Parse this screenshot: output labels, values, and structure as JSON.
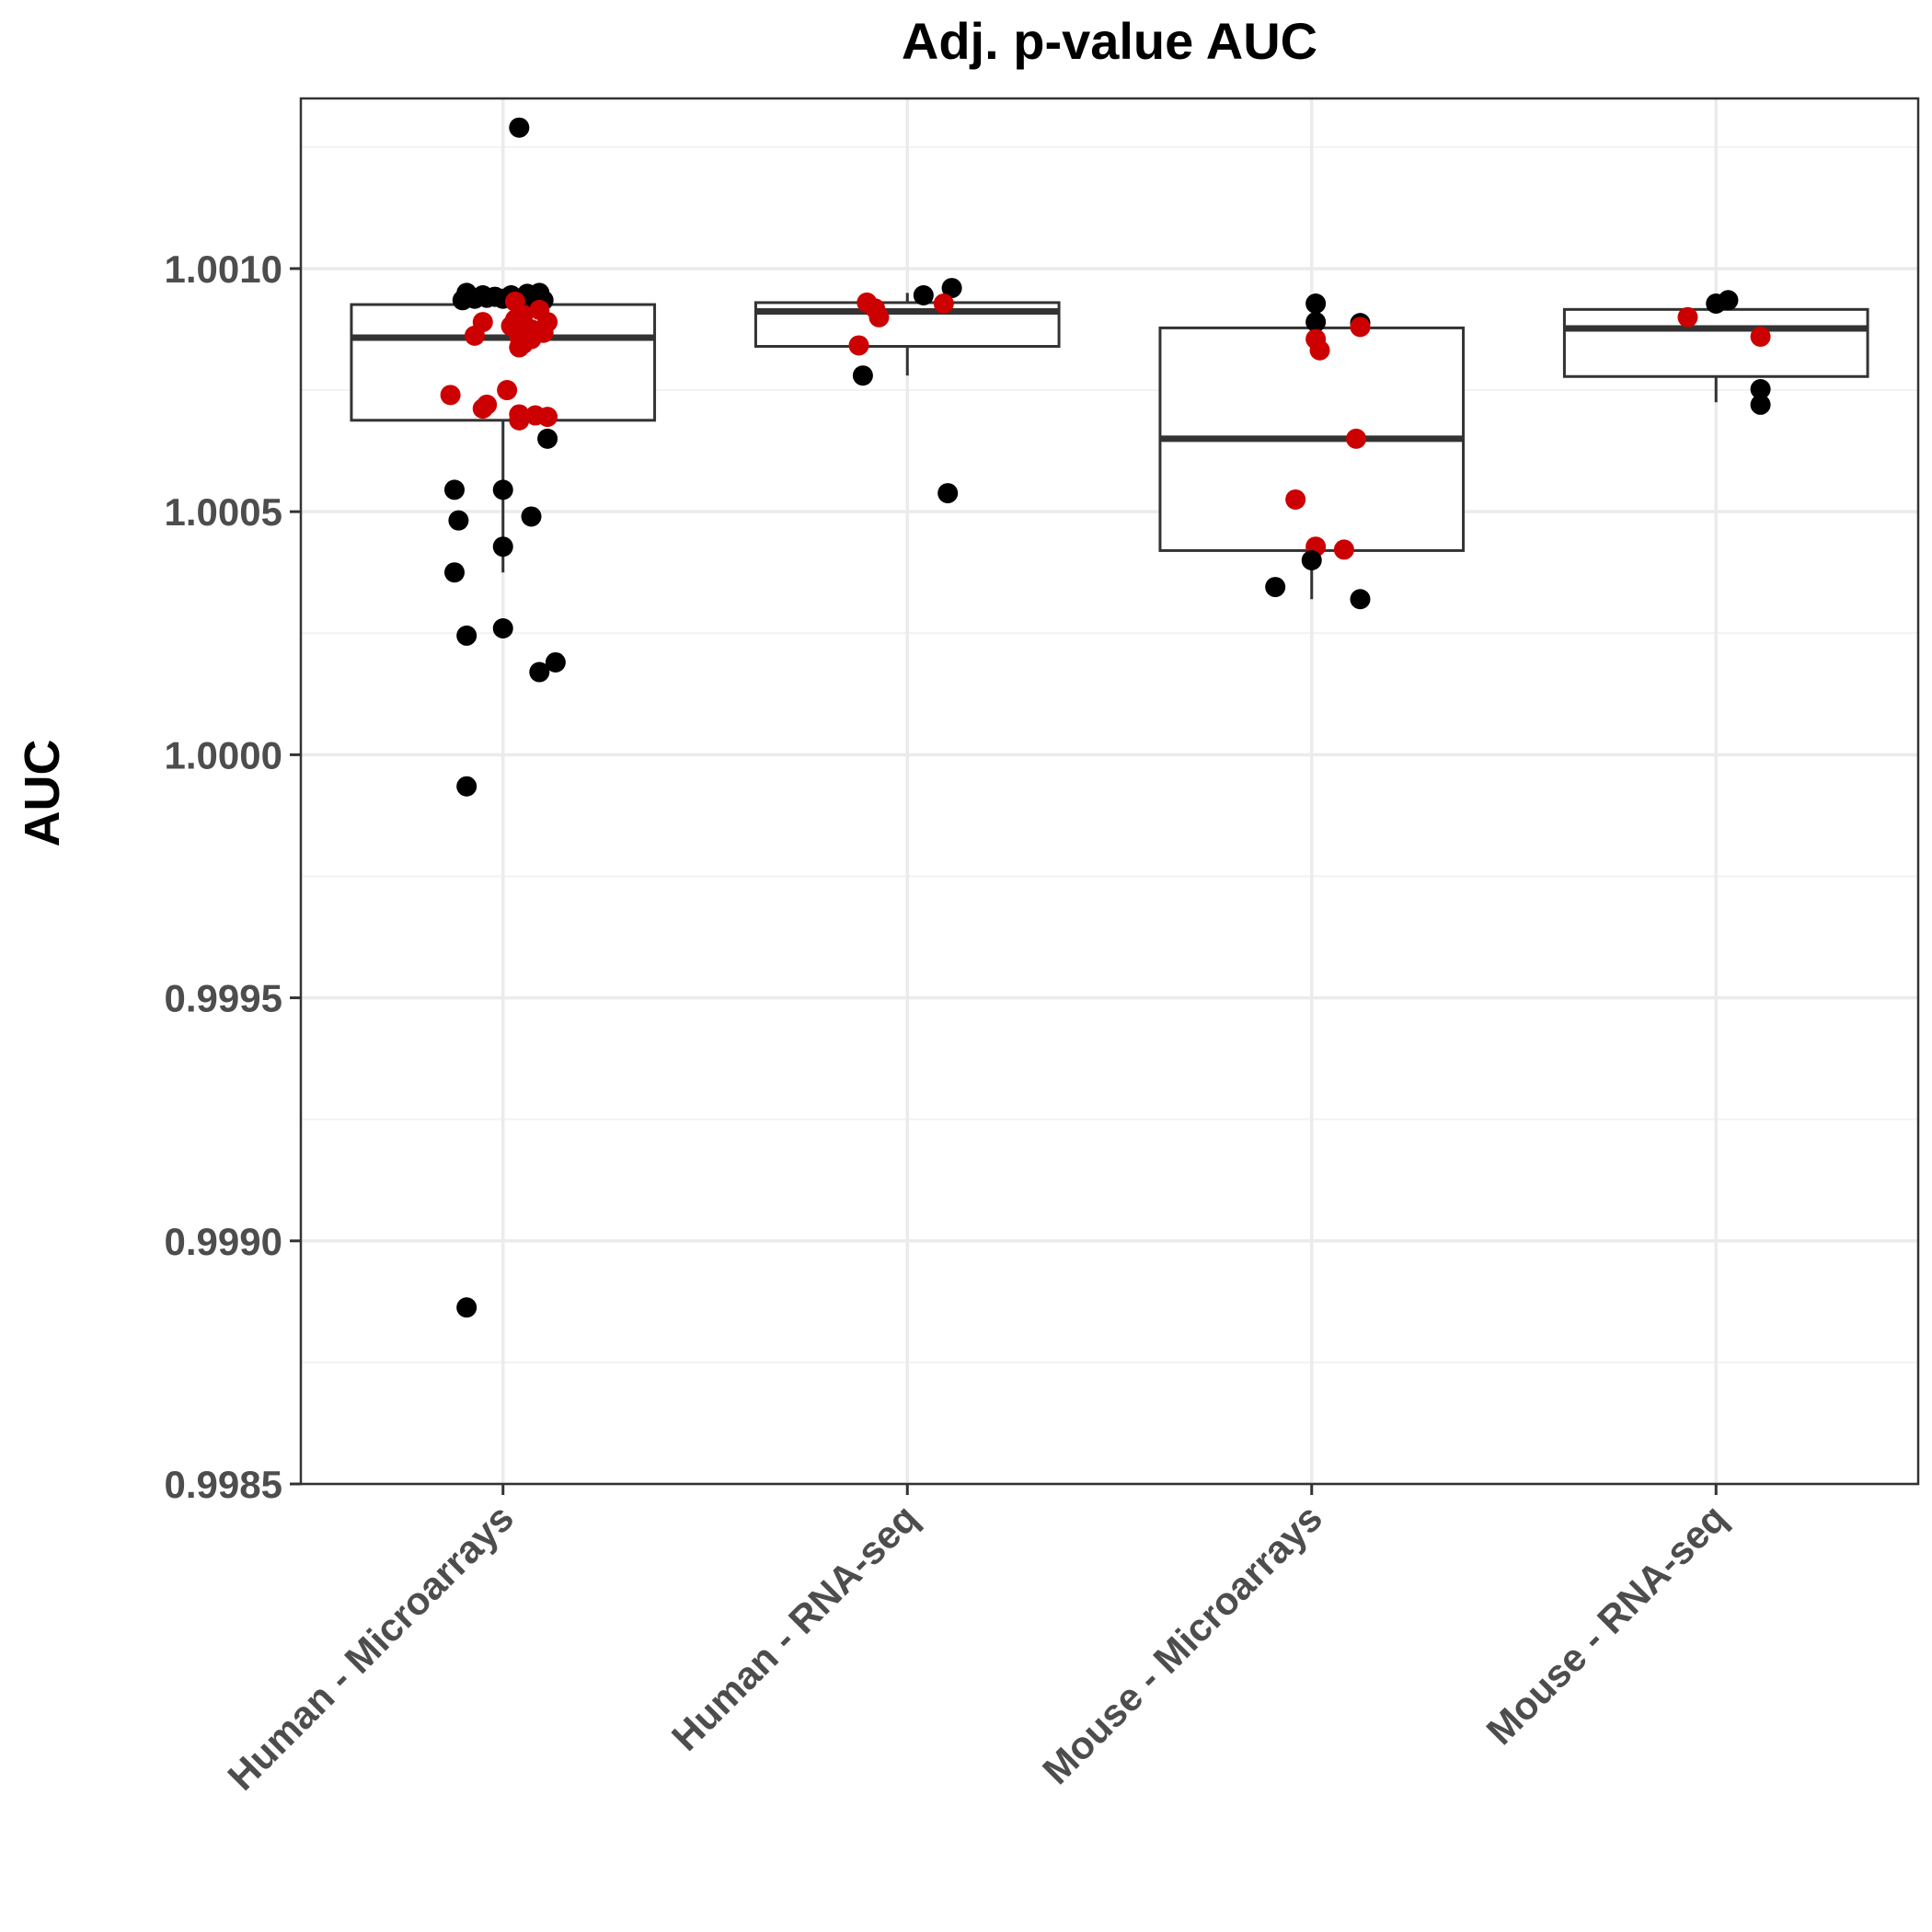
{
  "chart_data": {
    "type": "box",
    "title": "Adj. p-value AUC",
    "xlabel": "",
    "ylabel": "AUC",
    "ylim": [
      0.9985,
      1.00135
    ],
    "yticks": [
      "0.9985",
      "0.9990",
      "0.9995",
      "1.0000",
      "1.0005",
      "1.0010"
    ],
    "ytick_values": [
      0.9985,
      0.999,
      0.9995,
      1.0,
      1.0005,
      1.001
    ],
    "grid": true,
    "categories": [
      "Human - Microarrays",
      "Human - RNA-seq",
      "Mouse - Microarrays",
      "Mouse - RNA-seq"
    ],
    "colors": {
      "black_points": "#000000",
      "red_points": "#cc0000",
      "box": "#333333",
      "grid": "#ebebeb"
    },
    "boxes": [
      {
        "q1": 1.000688,
        "median": 1.000858,
        "q3": 1.000926,
        "whisker_low": 1.000375,
        "whisker_high": 1.00094
      },
      {
        "q1": 1.00084,
        "median": 1.000912,
        "q3": 1.00093,
        "whisker_low": 1.00078,
        "whisker_high": 1.00095
      },
      {
        "q1": 1.00042,
        "median": 1.00065,
        "q3": 1.000878,
        "whisker_low": 1.00032,
        "whisker_high": 1.0009
      },
      {
        "q1": 1.000778,
        "median": 1.000877,
        "q3": 1.000916,
        "whisker_low": 1.000725,
        "whisker_high": 1.000935
      }
    ],
    "points": [
      [
        {
          "y": 1.00129,
          "j": 0.04,
          "c": "black"
        },
        {
          "y": 1.00095,
          "j": -0.09,
          "c": "black"
        },
        {
          "y": 1.000945,
          "j": -0.05,
          "c": "black"
        },
        {
          "y": 1.000942,
          "j": -0.02,
          "c": "black"
        },
        {
          "y": 1.000945,
          "j": 0.02,
          "c": "black"
        },
        {
          "y": 1.000948,
          "j": 0.06,
          "c": "black"
        },
        {
          "y": 1.00095,
          "j": 0.09,
          "c": "black"
        },
        {
          "y": 1.000935,
          "j": -0.1,
          "c": "black"
        },
        {
          "y": 1.000938,
          "j": -0.07,
          "c": "black"
        },
        {
          "y": 1.00094,
          "j": -0.04,
          "c": "black"
        },
        {
          "y": 1.000938,
          "j": 0.0,
          "c": "black"
        },
        {
          "y": 1.000936,
          "j": 0.04,
          "c": "black"
        },
        {
          "y": 1.00094,
          "j": 0.07,
          "c": "black"
        },
        {
          "y": 1.000935,
          "j": 0.1,
          "c": "black"
        },
        {
          "y": 1.000932,
          "j": 0.03,
          "c": "red"
        },
        {
          "y": 1.000915,
          "j": 0.09,
          "c": "red"
        },
        {
          "y": 1.000905,
          "j": 0.05,
          "c": "red"
        },
        {
          "y": 1.000895,
          "j": 0.03,
          "c": "red"
        },
        {
          "y": 1.00089,
          "j": -0.05,
          "c": "red"
        },
        {
          "y": 1.00089,
          "j": 0.11,
          "c": "red"
        },
        {
          "y": 1.000882,
          "j": 0.02,
          "c": "red"
        },
        {
          "y": 1.000875,
          "j": 0.07,
          "c": "red"
        },
        {
          "y": 1.000868,
          "j": 0.1,
          "c": "red"
        },
        {
          "y": 1.000862,
          "j": -0.07,
          "c": "red"
        },
        {
          "y": 1.00086,
          "j": 0.04,
          "c": "red"
        },
        {
          "y": 1.000855,
          "j": 0.07,
          "c": "red"
        },
        {
          "y": 1.000845,
          "j": 0.05,
          "c": "red"
        },
        {
          "y": 1.000838,
          "j": 0.04,
          "c": "red"
        },
        {
          "y": 1.00075,
          "j": 0.01,
          "c": "red"
        },
        {
          "y": 1.00074,
          "j": -0.13,
          "c": "red"
        },
        {
          "y": 1.00072,
          "j": -0.04,
          "c": "red"
        },
        {
          "y": 1.000712,
          "j": -0.05,
          "c": "red"
        },
        {
          "y": 1.0007,
          "j": 0.04,
          "c": "red"
        },
        {
          "y": 1.000698,
          "j": 0.08,
          "c": "red"
        },
        {
          "y": 1.000695,
          "j": 0.11,
          "c": "red"
        },
        {
          "y": 1.000688,
          "j": 0.04,
          "c": "red"
        },
        {
          "y": 1.00065,
          "j": 0.11,
          "c": "black"
        },
        {
          "y": 1.000545,
          "j": -0.12,
          "c": "black"
        },
        {
          "y": 1.000545,
          "j": 0.0,
          "c": "black"
        },
        {
          "y": 1.00049,
          "j": 0.07,
          "c": "black"
        },
        {
          "y": 1.000482,
          "j": -0.11,
          "c": "black"
        },
        {
          "y": 1.000428,
          "j": 0.0,
          "c": "black"
        },
        {
          "y": 1.000375,
          "j": -0.12,
          "c": "black"
        },
        {
          "y": 1.00026,
          "j": 0.0,
          "c": "black"
        },
        {
          "y": 1.000245,
          "j": -0.09,
          "c": "black"
        },
        {
          "y": 1.00019,
          "j": 0.13,
          "c": "black"
        },
        {
          "y": 1.00017,
          "j": 0.09,
          "c": "black"
        },
        {
          "y": 0.999935,
          "j": -0.09,
          "c": "black"
        },
        {
          "y": 0.998863,
          "j": -0.09,
          "c": "black"
        }
      ],
      [
        {
          "y": 1.00096,
          "j": 0.11,
          "c": "black"
        },
        {
          "y": 1.000945,
          "j": 0.04,
          "c": "black"
        },
        {
          "y": 1.00093,
          "j": -0.1,
          "c": "red"
        },
        {
          "y": 1.000928,
          "j": 0.09,
          "c": "red"
        },
        {
          "y": 1.000918,
          "j": -0.08,
          "c": "red"
        },
        {
          "y": 1.0009,
          "j": -0.07,
          "c": "red"
        },
        {
          "y": 1.000842,
          "j": -0.12,
          "c": "red"
        },
        {
          "y": 1.00078,
          "j": -0.11,
          "c": "black"
        },
        {
          "y": 1.000538,
          "j": 0.1,
          "c": "black"
        }
      ],
      [
        {
          "y": 1.000928,
          "j": 0.01,
          "c": "black"
        },
        {
          "y": 1.00089,
          "j": 0.01,
          "c": "black"
        },
        {
          "y": 1.000888,
          "j": 0.12,
          "c": "black"
        },
        {
          "y": 1.00088,
          "j": 0.12,
          "c": "red"
        },
        {
          "y": 1.000855,
          "j": 0.01,
          "c": "red"
        },
        {
          "y": 1.000832,
          "j": 0.02,
          "c": "red"
        },
        {
          "y": 1.00065,
          "j": 0.11,
          "c": "red"
        },
        {
          "y": 1.000525,
          "j": -0.04,
          "c": "red"
        },
        {
          "y": 1.000428,
          "j": 0.01,
          "c": "red"
        },
        {
          "y": 1.000422,
          "j": 0.08,
          "c": "red"
        },
        {
          "y": 1.0004,
          "j": 0.0,
          "c": "black"
        },
        {
          "y": 1.000345,
          "j": -0.09,
          "c": "black"
        },
        {
          "y": 1.00032,
          "j": 0.12,
          "c": "black"
        }
      ],
      [
        {
          "y": 1.000935,
          "j": 0.03,
          "c": "black"
        },
        {
          "y": 1.000928,
          "j": 0.0,
          "c": "black"
        },
        {
          "y": 1.0009,
          "j": -0.07,
          "c": "red"
        },
        {
          "y": 1.00086,
          "j": 0.11,
          "c": "red"
        },
        {
          "y": 1.000752,
          "j": 0.11,
          "c": "black"
        },
        {
          "y": 1.00072,
          "j": 0.11,
          "c": "black"
        }
      ]
    ]
  }
}
